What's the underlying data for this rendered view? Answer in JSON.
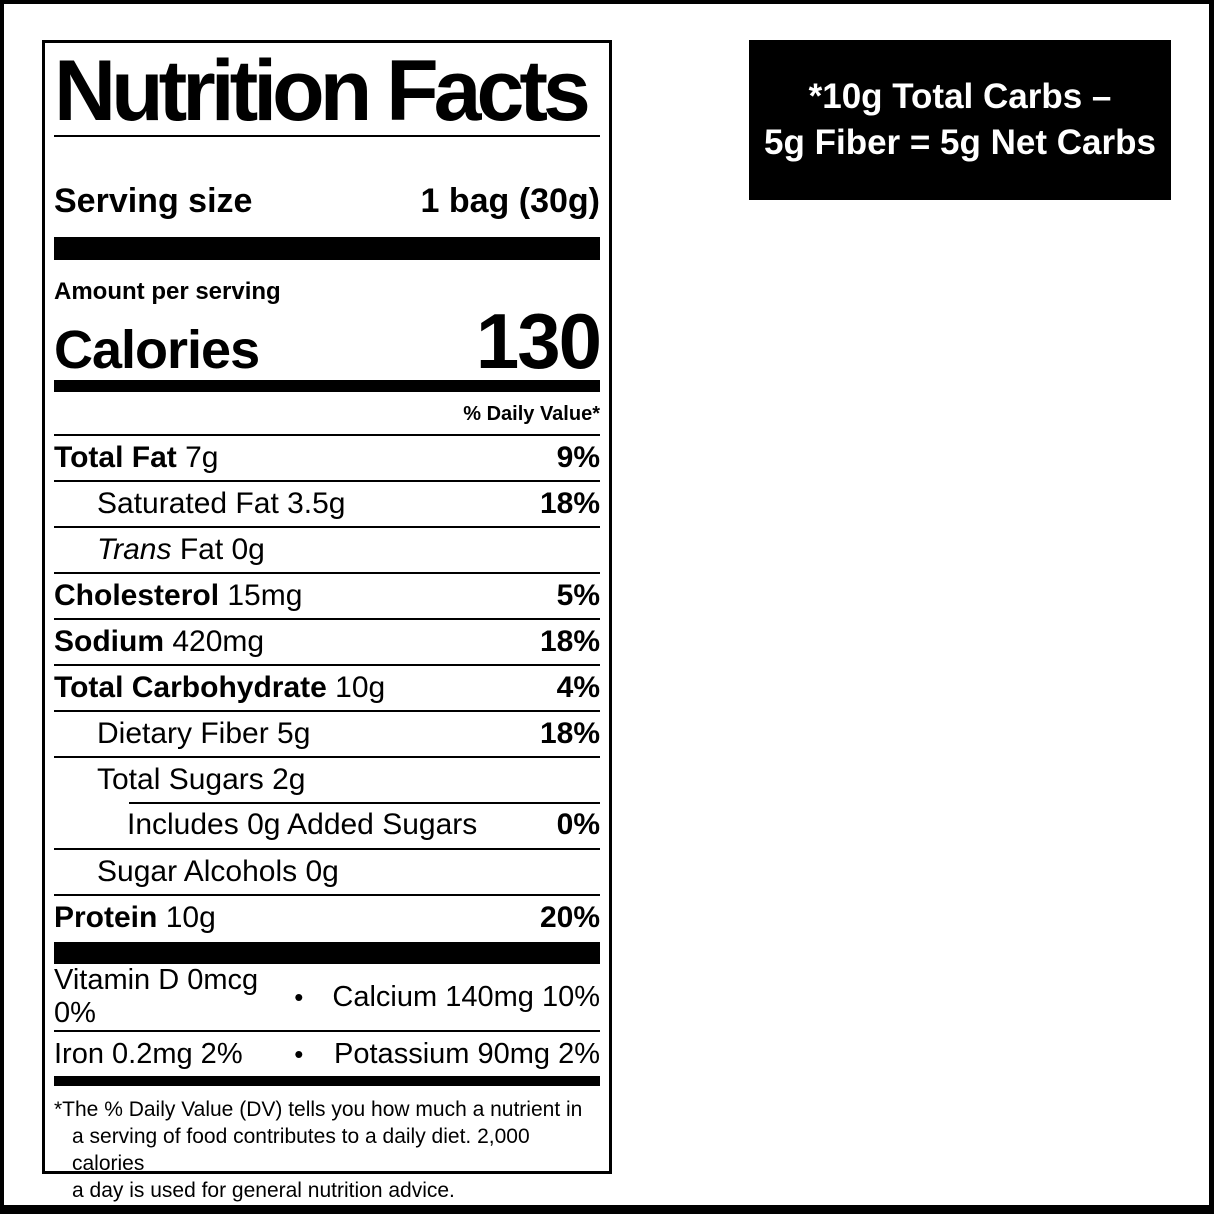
{
  "colors": {
    "ink": "#000000",
    "paper": "#ffffff",
    "callout_bg": "#000000",
    "callout_fg": "#ffffff"
  },
  "callout": {
    "line1": "*10g Total Carbs –",
    "line2": "5g Fiber = 5g Net Carbs"
  },
  "label": {
    "title": "Nutrition Facts",
    "serving": {
      "label": "Serving size",
      "value": "1 bag (30g)"
    },
    "amount_per_serving": "Amount per serving",
    "calories_label": "Calories",
    "calories_value": "130",
    "daily_value_header": "% Daily Value*",
    "rows": [
      {
        "strong": "Total Fat",
        "plain": "7g",
        "dv": "9%",
        "indent": 0
      },
      {
        "plain": "Saturated Fat 3.5g",
        "dv": "18%",
        "indent": 1
      },
      {
        "em": "Trans",
        "plain": "Fat 0g",
        "dv": "",
        "indent": 1
      },
      {
        "strong": "Cholesterol",
        "plain": "15mg",
        "dv": "5%",
        "indent": 0
      },
      {
        "strong": "Sodium",
        "plain": "420mg",
        "dv": "18%",
        "indent": 0
      },
      {
        "strong": "Total Carbohydrate",
        "plain": "10g",
        "dv": "4%",
        "indent": 0
      },
      {
        "plain": "Dietary Fiber 5g",
        "dv": "18%",
        "indent": 1
      },
      {
        "plain": "Total Sugars 2g",
        "dv": "",
        "indent": 1
      },
      {
        "plain": "Includes 0g Added Sugars",
        "dv": "0%",
        "indent": 2,
        "rule": "indent"
      },
      {
        "plain": "Sugar Alcohols 0g",
        "dv": "",
        "indent": 1
      },
      {
        "strong": "Protein",
        "plain": "10g",
        "dv": "20%",
        "indent": 0
      }
    ],
    "bullet": "•",
    "micronutrients": [
      {
        "left": "Vitamin D 0mcg 0%",
        "right": "Calcium 140mg 10%"
      },
      {
        "left": "Iron 0.2mg 2%",
        "right": "Potassium 90mg 2%"
      }
    ],
    "footnote_lines": [
      "*The % Daily Value (DV) tells you how much a nutrient in",
      "a serving of food contributes to a daily diet. 2,000 calories",
      "a day is used for general nutrition advice."
    ]
  }
}
